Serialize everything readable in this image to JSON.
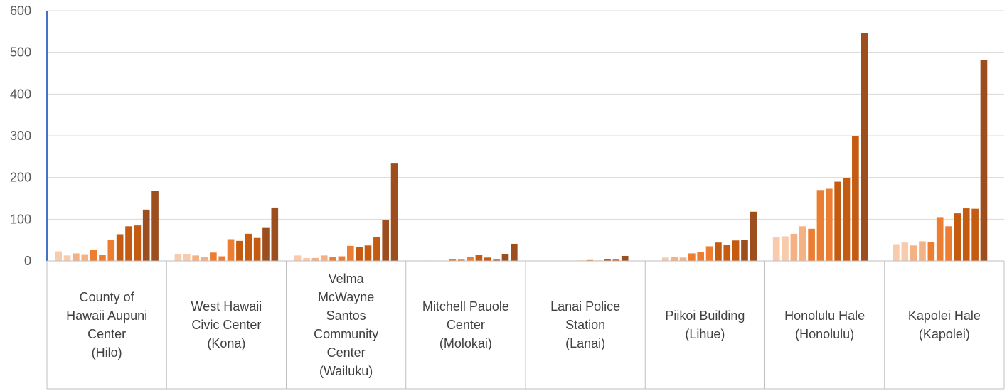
{
  "chart_data": {
    "type": "bar",
    "ylim": [
      0,
      600
    ],
    "y_ticks": [
      "0",
      "100",
      "200",
      "300",
      "400",
      "500",
      "600"
    ],
    "grid": true,
    "legend": "none",
    "categories": [
      {
        "label_lines": [
          "County of",
          "Hawaii Aupuni",
          "Center",
          "(Hilo)"
        ]
      },
      {
        "label_lines": [
          "West Hawaii",
          "Civic Center",
          "(Kona)"
        ]
      },
      {
        "label_lines": [
          "Velma",
          "McWayne",
          "Santos",
          "Community",
          "Center",
          "(Wailuku)"
        ]
      },
      {
        "label_lines": [
          "Mitchell Pauole",
          "Center",
          "(Molokai)"
        ]
      },
      {
        "label_lines": [
          "Lanai Police",
          "Station",
          "(Lanai)"
        ]
      },
      {
        "label_lines": [
          "Piikoi Building",
          "(Lihue)"
        ]
      },
      {
        "label_lines": [
          "Honolulu Hale",
          "(Honolulu)"
        ]
      },
      {
        "label_lines": [
          "Kapolei Hale",
          "(Kapolei)"
        ]
      }
    ],
    "series_colors": [
      "#F8CBAD",
      "#F4B183",
      "#ED7D31",
      "#C55A11",
      "#9C4E1F"
    ],
    "values": [
      [
        23,
        13,
        18,
        16,
        27,
        15,
        51,
        64,
        83,
        85,
        123,
        168
      ],
      [
        17,
        17,
        13,
        9,
        20,
        11,
        52,
        48,
        65,
        55,
        79,
        128
      ],
      [
        13,
        7,
        7,
        13,
        9,
        11,
        36,
        34,
        37,
        58,
        98,
        235
      ],
      [
        0,
        1,
        0,
        0,
        4,
        3,
        10,
        15,
        8,
        3,
        17,
        41
      ],
      [
        0,
        0,
        0,
        0,
        0,
        1,
        2,
        1,
        4,
        3,
        12,
        0
      ],
      [
        0,
        8,
        10,
        8,
        18,
        22,
        35,
        44,
        39,
        49,
        50,
        118
      ],
      [
        58,
        59,
        65,
        83,
        77,
        170,
        173,
        190,
        199,
        300,
        547,
        0
      ],
      [
        40,
        44,
        37,
        47,
        45,
        105,
        83,
        114,
        126,
        125,
        481,
        0
      ]
    ]
  }
}
